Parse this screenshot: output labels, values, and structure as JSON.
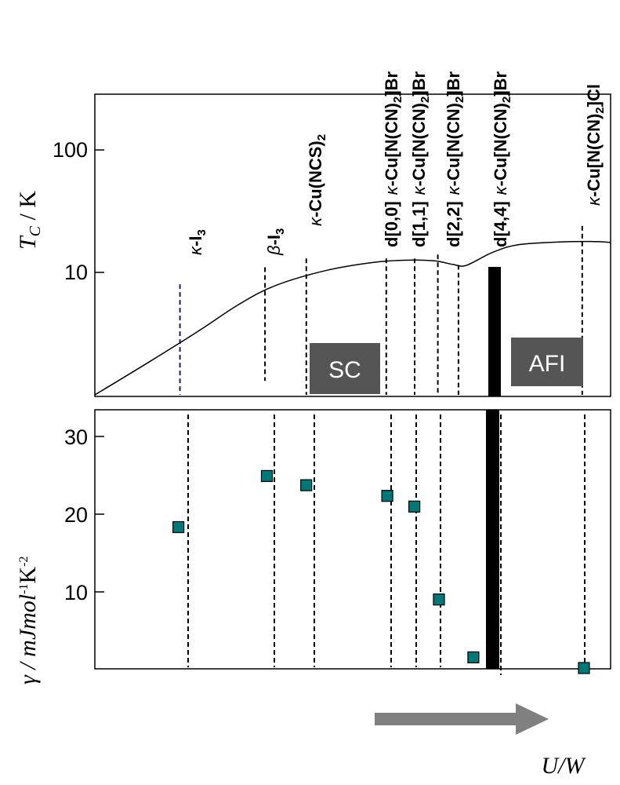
{
  "chart_data": [
    {
      "type": "line",
      "panel": "top",
      "title": "",
      "ylabel": "T_C / K",
      "yscale": "log",
      "ylim": [
        1,
        300
      ],
      "yticks": [
        {
          "value": 10,
          "label": "10"
        },
        {
          "value": 100,
          "label": "100"
        }
      ],
      "xlabel": "U/W",
      "curve": {
        "u": [
          0.0,
          0.1,
          0.2,
          0.28,
          0.35,
          0.45,
          0.55,
          0.62,
          0.66,
          0.675,
          0.695,
          0.72,
          0.77,
          0.82,
          0.9,
          0.96,
          1.0
        ],
        "tc": [
          1.0,
          1.8,
          3.3,
          5.5,
          7.8,
          10.4,
          12.2,
          12.6,
          12.4,
          12.1,
          11.6,
          11.4,
          14.5,
          16.8,
          17.7,
          17.9,
          17.6
        ]
      },
      "regions": [
        {
          "label": "SC",
          "u_center": 0.45,
          "tc_center": 2.4
        },
        {
          "label": "AFI",
          "u_center": 0.76,
          "tc_center": 2.4
        }
      ],
      "transition_u": 0.695,
      "guide_lines": [
        {
          "u": 0.165,
          "tc_top": 8.0,
          "tc_bottom": 1.0,
          "color": "#1a1a6e"
        },
        {
          "u": 0.33,
          "tc_top": 11.0,
          "tc_bottom": 1.3,
          "color": "#000000"
        },
        {
          "u": 0.41,
          "tc_top": 13.0,
          "tc_bottom": 1.0,
          "color": "#000000"
        },
        {
          "u": 0.565,
          "tc_top": 13.0,
          "tc_bottom": 1.0,
          "color": "#000000"
        },
        {
          "u": 0.62,
          "tc_top": 13.0,
          "tc_bottom": 1.0,
          "color": "#000000"
        },
        {
          "u": 0.665,
          "tc_top": 14.0,
          "tc_bottom": 1.0,
          "color": "#000000"
        },
        {
          "u": 0.705,
          "tc_top": 11.5,
          "tc_bottom": 1.0,
          "color": "#000000"
        },
        {
          "u": 0.945,
          "tc_top": 24.0,
          "tc_bottom": 1.0,
          "color": "#000000"
        }
      ]
    },
    {
      "type": "scatter",
      "panel": "bottom",
      "ylabel": "γ  / mJmol-1K-2",
      "ylim": [
        0,
        34
      ],
      "yticks": [
        10,
        20,
        30
      ],
      "points": [
        {
          "material": "κ-I3",
          "u": 0.17,
          "gamma": 18.6
        },
        {
          "material": "β-I3",
          "u": 0.35,
          "gamma": 25.3
        },
        {
          "material": "κ-Cu(NCS)2",
          "u": 0.43,
          "gamma": 24.1
        },
        {
          "material": "d[0,0] κ-Cu[N(CN)2]Br",
          "u": 0.595,
          "gamma": 22.7
        },
        {
          "material": "d[1,1] κ-Cu[N(CN)2]Br",
          "u": 0.65,
          "gamma": 21.3
        },
        {
          "material": "d[2,2] κ-Cu[N(CN)2]Br",
          "u": 0.7,
          "gamma": 9.1
        },
        {
          "material": "d[4,4] κ-Cu[N(CN)2]Br",
          "u": 0.77,
          "gamma": 1.5
        },
        {
          "material": "κ-Cu[N(CN)2]Cl",
          "u": 0.995,
          "gamma": 0.1
        }
      ],
      "marker_color": "#007878"
    }
  ],
  "top_axis": {
    "tick_labels": [
      "10",
      "100"
    ],
    "ylabel_main": "T",
    "ylabel_sub": "C",
    "ylabel_rest": " / K"
  },
  "bottom_axis": {
    "tick_labels": [
      "10",
      "20",
      "30"
    ],
    "ylabel_prefix": "γ  / mJmol",
    "ylabel_sup1": "-1",
    "ylabel_mid": "K",
    "ylabel_sup2": "-2"
  },
  "x_axis_label": "U/W",
  "region_labels": {
    "sc": "SC",
    "afi": "AFI"
  },
  "materials": {
    "kI3": {
      "greek": "κ",
      "name": "-I",
      "sub": "3"
    },
    "bI3": {
      "greek": "β",
      "name": "-I",
      "sub": "3"
    },
    "kNCS": {
      "greek": "κ",
      "name": "-Cu(NCS)",
      "sub": "2"
    },
    "d00": {
      "prefix": "d[0,0]",
      "greek": "κ",
      "name1": "-Cu[N(CN)",
      "sub": "2",
      "name2": "]Br"
    },
    "d11": {
      "prefix": "d[1,1]",
      "greek": "κ",
      "name1": "-Cu[N(CN)",
      "sub": "2",
      "name2": "]Br"
    },
    "d22": {
      "prefix": "d[2,2]",
      "greek": "κ",
      "name1": "-Cu[N(CN)",
      "sub": "2",
      "name2": "]Br"
    },
    "d44": {
      "prefix": "d[4,4]",
      "greek": "κ",
      "name1": "-Cu[N(CN)",
      "sub": "2",
      "name2": "]Br"
    },
    "kCl": {
      "greek": "κ",
      "name1": "-Cu[N(CN)",
      "sub": "2",
      "name2": "]Cl"
    }
  }
}
